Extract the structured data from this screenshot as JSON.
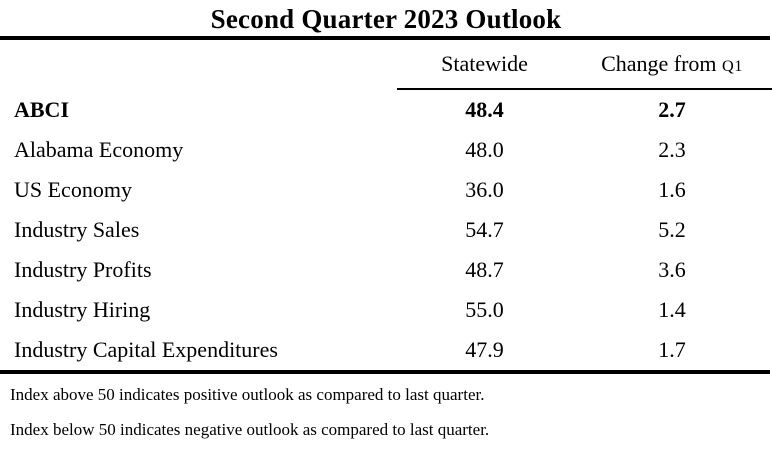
{
  "title": "Second Quarter 2023 Outlook",
  "table": {
    "header": {
      "col_statewide": "Statewide",
      "col_change_prefix": "Change from ",
      "col_change_suffix": "Q1"
    },
    "rows": [
      {
        "label": "ABCI",
        "statewide": "48.4",
        "change": "2.7"
      },
      {
        "label": "Alabama Economy",
        "statewide": "48.0",
        "change": "2.3"
      },
      {
        "label": "US Economy",
        "statewide": "36.0",
        "change": "1.6"
      },
      {
        "label": "Industry Sales",
        "statewide": "54.7",
        "change": "5.2"
      },
      {
        "label": "Industry Profits",
        "statewide": "48.7",
        "change": "3.6"
      },
      {
        "label": "Industry Hiring",
        "statewide": "55.0",
        "change": "1.4"
      },
      {
        "label": "Industry Capital Expenditures",
        "statewide": "47.9",
        "change": "1.7"
      }
    ]
  },
  "footnotes": [
    "Index above 50 indicates positive outlook as compared to last quarter.",
    "Index below 50 indicates negative outlook as compared to last quarter."
  ],
  "colors": {
    "text": "#000000",
    "background": "#ffffff",
    "rule": "#000000"
  },
  "chart_data": {
    "type": "table",
    "title": "Second Quarter 2023 Outlook",
    "columns": [
      "",
      "Statewide",
      "Change from Q1"
    ],
    "rows": [
      [
        "ABCI",
        48.4,
        2.7
      ],
      [
        "Alabama Economy",
        48.0,
        2.3
      ],
      [
        "US Economy",
        36.0,
        1.6
      ],
      [
        "Industry Sales",
        54.7,
        5.2
      ],
      [
        "Industry Profits",
        48.7,
        3.6
      ],
      [
        "Industry Hiring",
        55.0,
        1.4
      ],
      [
        "Industry Capital Expenditures",
        47.9,
        1.7
      ]
    ],
    "notes": [
      "Index above 50 indicates positive outlook as compared to last quarter.",
      "Index below 50 indicates negative outlook as compared to last quarter."
    ],
    "layout": "first data row emphasized bold; thick rules above header and below body; thin rule under value-column headers only"
  }
}
